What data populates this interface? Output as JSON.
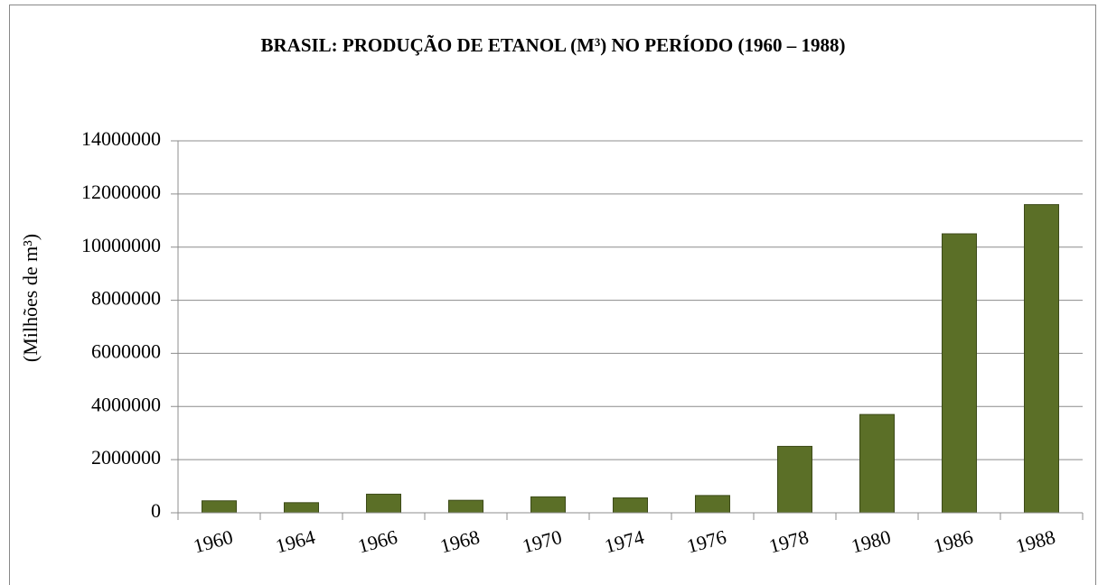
{
  "chart_data": {
    "type": "bar",
    "title": "BRASIL: PRODUÇÃO DE ETANOL (M³) NO PERÍODO (1960 – 1988)",
    "y_label": "(Milhões de m³)",
    "categories": [
      "1960",
      "1964",
      "1966",
      "1968",
      "1970",
      "1974",
      "1976",
      "1978",
      "1980",
      "1986",
      "1988"
    ],
    "values": [
      450000,
      380000,
      700000,
      470000,
      600000,
      560000,
      650000,
      2500000,
      3700000,
      10500000,
      11600000
    ],
    "color": "#5b6f27",
    "ylim": [
      0,
      14000000
    ],
    "yticks": [
      0,
      2000000,
      4000000,
      6000000,
      8000000,
      10000000,
      12000000,
      14000000
    ],
    "grid": true
  }
}
